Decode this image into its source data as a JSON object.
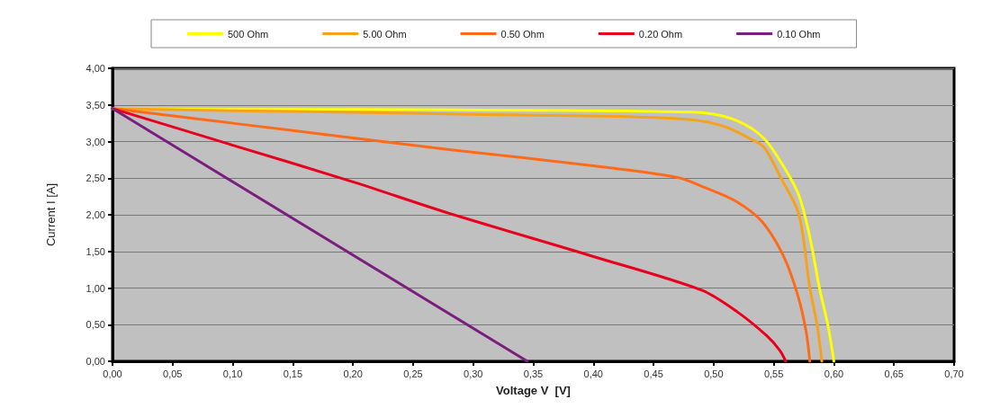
{
  "chart_data": {
    "type": "line",
    "xlabel": "Voltage V  [V]",
    "ylabel": "Current I [A]",
    "legend": "top",
    "grid": "y",
    "marker": "none",
    "line_style": "solid",
    "xlim": [
      0,
      0.7
    ],
    "ylim": [
      0,
      4
    ],
    "xticks": [
      {
        "value": 0,
        "label": "0,00"
      },
      {
        "value": 0.05,
        "label": "0,05"
      },
      {
        "value": 0.1,
        "label": "0,10"
      },
      {
        "value": 0.15,
        "label": "0,15"
      },
      {
        "value": 0.2,
        "label": "0,20"
      },
      {
        "value": 0.25,
        "label": "0,25"
      },
      {
        "value": 0.3,
        "label": "0,30"
      },
      {
        "value": 0.35,
        "label": "0,35"
      },
      {
        "value": 0.4,
        "label": "0,40"
      },
      {
        "value": 0.45,
        "label": "0,45"
      },
      {
        "value": 0.5,
        "label": "0,50"
      },
      {
        "value": 0.55,
        "label": "0,55"
      },
      {
        "value": 0.6,
        "label": "0,60"
      },
      {
        "value": 0.65,
        "label": "0,65"
      },
      {
        "value": 0.7,
        "label": "0,70"
      }
    ],
    "yticks": [
      {
        "value": 0,
        "label": "0,00"
      },
      {
        "value": 0.5,
        "label": "0,50"
      },
      {
        "value": 1,
        "label": "1,00"
      },
      {
        "value": 1.5,
        "label": "1,50"
      },
      {
        "value": 2,
        "label": "2,00"
      },
      {
        "value": 2.5,
        "label": "2,50"
      },
      {
        "value": 3,
        "label": "3,00"
      },
      {
        "value": 3.5,
        "label": "3,50"
      },
      {
        "value": 4,
        "label": "4,00"
      }
    ],
    "series": [
      {
        "name": "500 Ohm",
        "color": "#ffff00",
        "x": [
          0,
          0.1,
          0.2,
          0.3,
          0.4,
          0.45,
          0.493,
          0.52,
          0.542,
          0.56,
          0.571,
          0.58,
          0.588,
          0.595,
          0.6
        ],
        "values": [
          3.45,
          3.44,
          3.44,
          3.43,
          3.42,
          3.41,
          3.39,
          3.28,
          3.04,
          2.61,
          2.26,
          1.7,
          1.0,
          0.5,
          0
        ]
      },
      {
        "name": "5.00 Ohm",
        "color": "#f7a21b",
        "x": [
          0,
          0.1,
          0.2,
          0.3,
          0.4,
          0.48,
          0.51,
          0.53,
          0.542,
          0.556,
          0.571,
          0.58,
          0.586,
          0.59
        ],
        "values": [
          3.45,
          3.42,
          3.4,
          3.37,
          3.35,
          3.3,
          3.2,
          3.04,
          2.92,
          2.5,
          2.0,
          1.0,
          0.5,
          0
        ]
      },
      {
        "name": "0.50 Ohm",
        "color": "#ff6a1a",
        "x": [
          0,
          0.1,
          0.2,
          0.28,
          0.4,
          0.47,
          0.493,
          0.518,
          0.54,
          0.558,
          0.57,
          0.577,
          0.58
        ],
        "values": [
          3.45,
          3.25,
          3.05,
          2.89,
          2.67,
          2.51,
          2.37,
          2.19,
          1.91,
          1.44,
          0.9,
          0.4,
          0
        ]
      },
      {
        "name": "0.20 Ohm",
        "color": "#e8001c",
        "x": [
          0,
          0.1,
          0.2,
          0.28,
          0.4,
          0.49,
          0.52,
          0.544,
          0.555,
          0.56
        ],
        "values": [
          3.45,
          2.95,
          2.45,
          2.02,
          1.43,
          0.97,
          0.67,
          0.35,
          0.15,
          0
        ]
      },
      {
        "name": "0.10 Ohm",
        "color": "#7b1f7e",
        "x": [
          0,
          0.345
        ],
        "values": [
          3.45,
          0
        ]
      }
    ]
  }
}
